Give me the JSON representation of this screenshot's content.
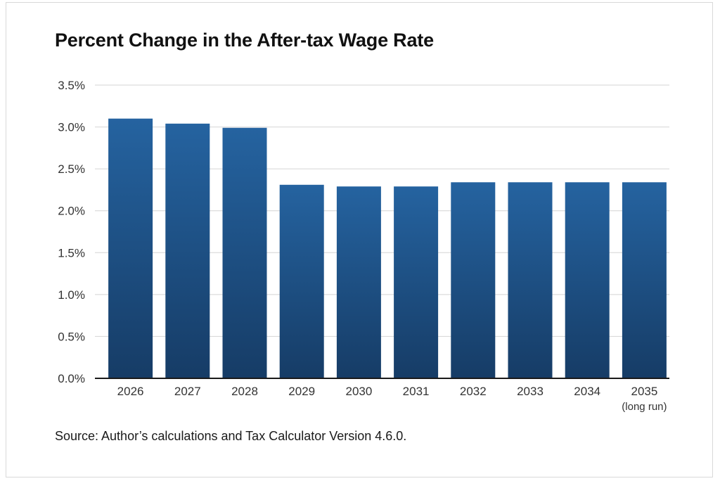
{
  "chart_data": {
    "type": "bar",
    "title": "Percent Change in the After-tax Wage Rate",
    "categories": [
      "2026",
      "2027",
      "2028",
      "2029",
      "2030",
      "2031",
      "2032",
      "2033",
      "2034",
      "2035"
    ],
    "category_sublabels": [
      "",
      "",
      "",
      "",
      "",
      "",
      "",
      "",
      "",
      "(long run)"
    ],
    "values": [
      3.1,
      3.04,
      2.99,
      2.31,
      2.29,
      2.29,
      2.34,
      2.34,
      2.34,
      2.34
    ],
    "y_ticks": [
      "0.0%",
      "0.5%",
      "1.0%",
      "1.5%",
      "2.0%",
      "2.5%",
      "3.0%",
      "3.5%"
    ],
    "ylim": [
      0,
      3.5
    ],
    "unit": "%",
    "grid": true,
    "xlabel": "",
    "ylabel": "",
    "bar_color_top": "#2563a0",
    "bar_color_bottom": "#163c66"
  },
  "source": "Source: Author’s calculations and Tax Calculator Version 4.6.0."
}
